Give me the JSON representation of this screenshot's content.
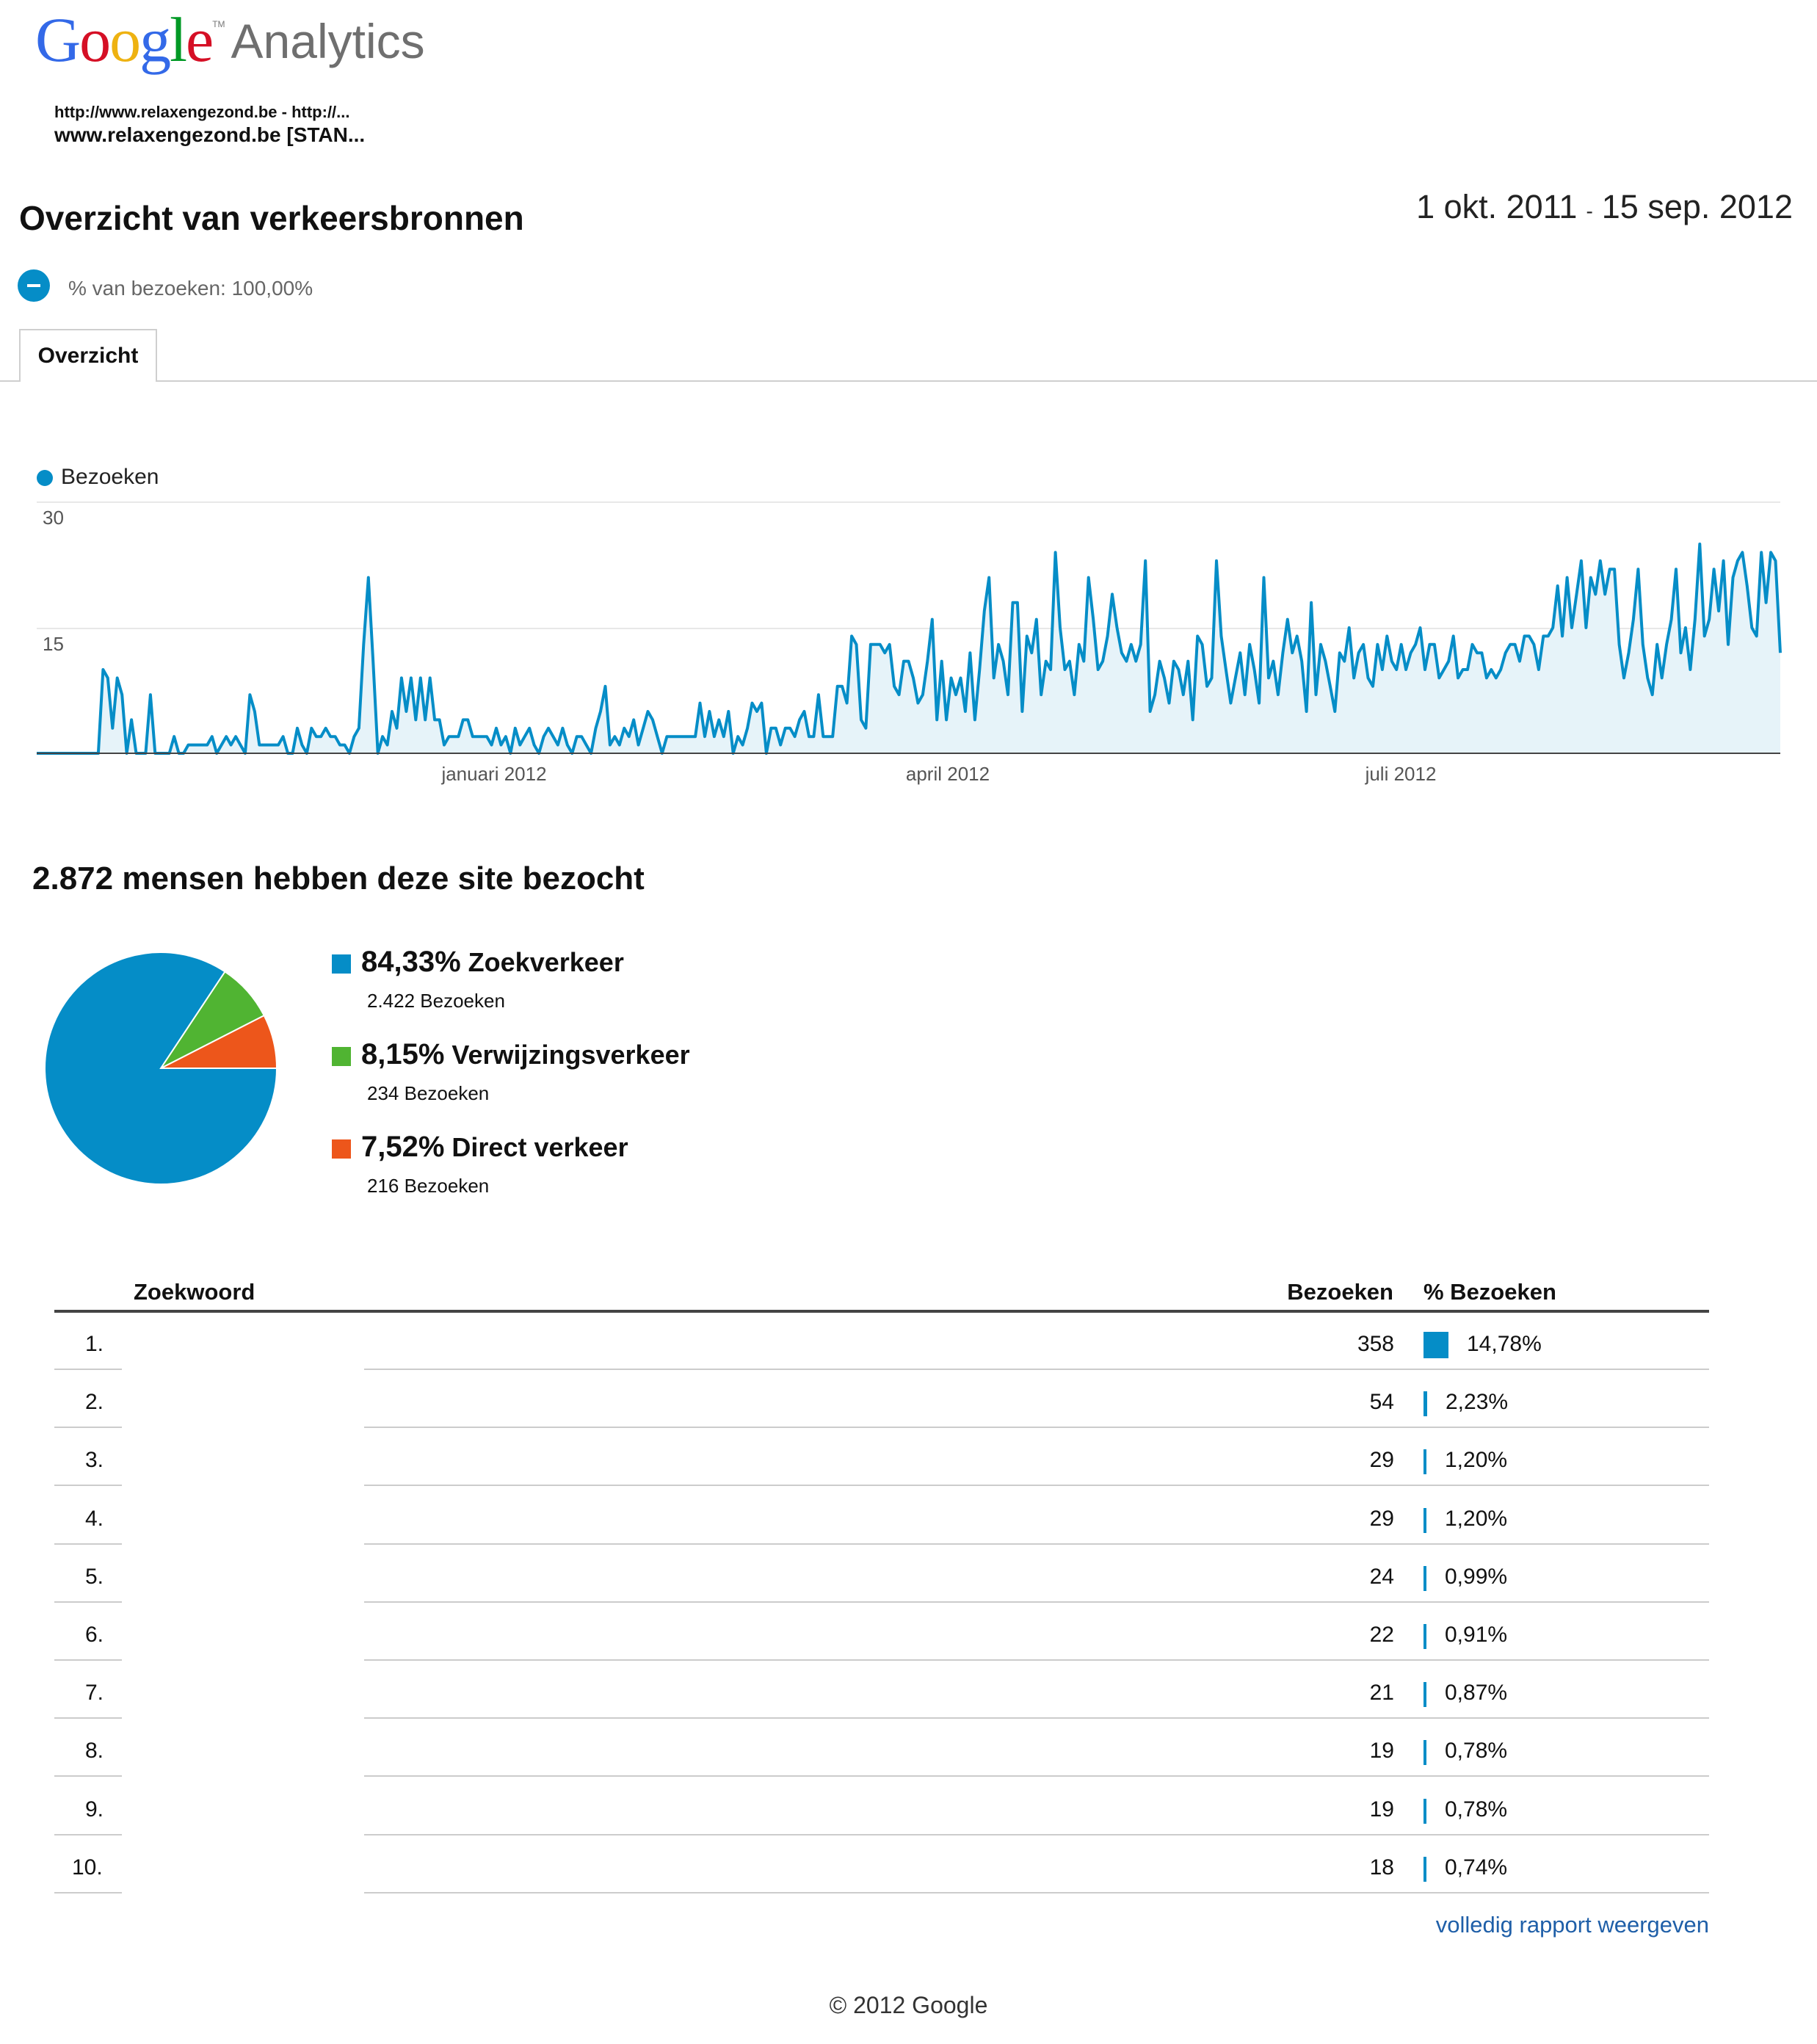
{
  "logo": {
    "g1": "G",
    "o1": "o",
    "o2": "o",
    "g2": "g",
    "l": "l",
    "e": "e",
    "product": "Analytics",
    "colors": {
      "blue": "#3369e8",
      "red": "#d50f25",
      "yellow": "#eeb211",
      "green": "#009925"
    }
  },
  "account": {
    "line1": "http://www.relaxengezond.be - http://...",
    "line2": "www.relaxengezond.be [STAN..."
  },
  "page": {
    "title": "Overzicht van verkeersbronnen",
    "date_start": "1 okt. 2011",
    "date_sep": "-",
    "date_end": "15 sep. 2012"
  },
  "segment": {
    "label": "% van bezoeken: 100,00%",
    "icon": "segment-pie-icon"
  },
  "tabs": [
    {
      "label": "Overzicht",
      "active": true
    }
  ],
  "chart_data": {
    "type": "area",
    "series": [
      {
        "name": "Bezoeken",
        "color": "#058dc7"
      }
    ],
    "x_ticks": [
      "januari 2012",
      "april 2012",
      "juli 2012"
    ],
    "y_ticks": [
      "30",
      "15"
    ],
    "ylim": [
      0,
      30
    ],
    "grid": true,
    "legend": "top-left",
    "y_values": [
      0,
      0,
      0,
      0,
      0,
      0,
      0,
      0,
      0,
      0,
      0,
      0,
      0,
      0,
      10,
      9,
      3,
      9,
      7,
      0,
      4,
      0,
      0,
      0,
      7,
      0,
      0,
      0,
      0,
      2,
      0,
      0,
      1,
      1,
      1,
      1,
      1,
      2,
      0,
      1,
      2,
      1,
      2,
      1,
      0,
      7,
      5,
      1,
      1,
      1,
      1,
      1,
      2,
      0,
      0,
      3,
      1,
      0,
      3,
      2,
      2,
      3,
      2,
      2,
      1,
      1,
      0,
      2,
      3,
      13,
      21,
      11,
      0,
      2,
      1,
      5,
      3,
      9,
      5,
      9,
      4,
      9,
      4,
      9,
      4,
      4,
      1,
      2,
      2,
      2,
      4,
      4,
      2,
      2,
      2,
      2,
      1,
      3,
      1,
      2,
      0,
      3,
      1,
      2,
      3,
      1,
      0,
      2,
      3,
      2,
      1,
      3,
      1,
      0,
      2,
      2,
      1,
      0,
      3,
      5,
      8,
      1,
      2,
      1,
      3,
      2,
      4,
      1,
      3,
      5,
      4,
      2,
      0,
      2,
      2,
      2,
      2,
      2,
      2,
      2,
      6,
      2,
      5,
      2,
      4,
      2,
      5,
      0,
      2,
      1,
      3,
      6,
      5,
      6,
      0,
      3,
      3,
      1,
      3,
      3,
      2,
      4,
      5,
      2,
      2,
      7,
      2,
      2,
      2,
      8,
      8,
      6,
      14,
      13,
      4,
      3,
      13,
      13,
      13,
      12,
      13,
      8,
      7,
      11,
      11,
      9,
      6,
      7,
      11,
      16,
      4,
      11,
      4,
      9,
      7,
      9,
      5,
      12,
      4,
      10,
      17,
      21,
      9,
      13,
      11,
      7,
      18,
      18,
      5,
      14,
      12,
      16,
      7,
      11,
      10,
      24,
      15,
      10,
      11,
      7,
      13,
      11,
      21,
      16,
      10,
      11,
      14,
      19,
      15,
      12,
      11,
      13,
      11,
      13,
      23,
      5,
      7,
      11,
      9,
      6,
      11,
      10,
      7,
      11,
      4,
      14,
      13,
      8,
      9,
      23,
      14,
      10,
      6,
      9,
      12,
      7,
      13,
      10,
      6,
      21,
      9,
      11,
      7,
      12,
      16,
      12,
      14,
      11,
      5,
      18,
      7,
      13,
      11,
      8,
      5,
      12,
      11,
      15,
      9,
      12,
      13,
      9,
      8,
      13,
      10,
      14,
      11,
      10,
      13,
      10,
      12,
      13,
      15,
      10,
      13,
      13,
      9,
      10,
      11,
      14,
      9,
      10,
      10,
      13,
      12,
      12,
      9,
      10,
      9,
      10,
      12,
      13,
      13,
      11,
      14,
      14,
      13,
      10,
      14,
      14,
      15,
      20,
      14,
      21,
      15,
      19,
      23,
      15,
      21,
      19,
      23,
      19,
      22,
      22,
      13,
      9,
      12,
      16,
      22,
      13,
      9,
      7,
      13,
      9,
      13,
      16,
      22,
      12,
      15,
      10,
      16,
      25,
      14,
      16,
      22,
      17,
      23,
      13,
      21,
      23,
      24,
      20,
      15,
      14,
      24,
      18,
      24,
      23,
      12
    ]
  },
  "pie": {
    "heading": "2.872 mensen hebben deze site bezocht",
    "slices": [
      {
        "label": "Zoekverkeer",
        "percent": "84,33%",
        "value": 84.33,
        "count": "2.422 Bezoeken",
        "color": "#058dc7"
      },
      {
        "label": "Verwijzingsverkeer",
        "percent": "8,15%",
        "value": 8.15,
        "count": "234 Bezoeken",
        "color": "#50b432"
      },
      {
        "label": "Direct verkeer",
        "percent": "7,52%",
        "value": 7.52,
        "count": "216 Bezoeken",
        "color": "#ed561b"
      }
    ]
  },
  "table": {
    "headers": {
      "keyword": "Zoekwoord",
      "visits": "Bezoeken",
      "pct": "% Bezoeken"
    },
    "rows": [
      {
        "rank": "1.",
        "keyword": "",
        "visits": "358",
        "pct": "14,78%",
        "share": 14.78
      },
      {
        "rank": "2.",
        "keyword": "",
        "visits": "54",
        "pct": "2,23%",
        "share": 2.23
      },
      {
        "rank": "3.",
        "keyword": "",
        "visits": "29",
        "pct": "1,20%",
        "share": 1.2
      },
      {
        "rank": "4.",
        "keyword": "",
        "visits": "29",
        "pct": "1,20%",
        "share": 1.2
      },
      {
        "rank": "5.",
        "keyword": "",
        "visits": "24",
        "pct": "0,99%",
        "share": 0.99
      },
      {
        "rank": "6.",
        "keyword": "",
        "visits": "22",
        "pct": "0,91%",
        "share": 0.91
      },
      {
        "rank": "7.",
        "keyword": "",
        "visits": "21",
        "pct": "0,87%",
        "share": 0.87
      },
      {
        "rank": "8.",
        "keyword": "",
        "visits": "19",
        "pct": "0,78%",
        "share": 0.78
      },
      {
        "rank": "9.",
        "keyword": "",
        "visits": "19",
        "pct": "0,78%",
        "share": 0.78
      },
      {
        "rank": "10.",
        "keyword": "",
        "visits": "18",
        "pct": "0,74%",
        "share": 0.74
      }
    ],
    "link": "volledig rapport weergeven"
  },
  "footer": {
    "copyright": "© 2012 Google"
  }
}
